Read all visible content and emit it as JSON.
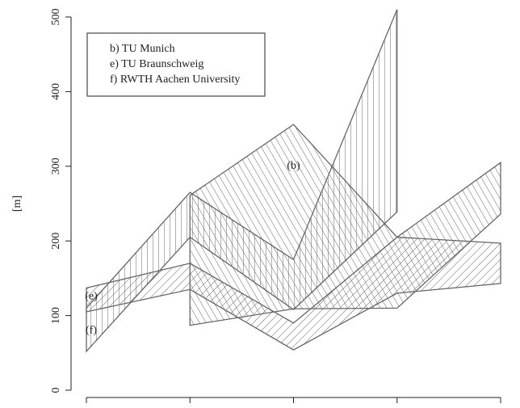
{
  "chart_data": {
    "type": "band",
    "ylabel": "[m]",
    "categories": [
      null,
      null,
      null,
      null,
      null
    ],
    "ylim": [
      0,
      500
    ],
    "yticks": [
      0,
      100,
      200,
      300,
      400,
      500
    ],
    "legend": "top-left",
    "series": [
      {
        "name": "b) TU Munich",
        "color": "#666666",
        "hatch_angle": -30,
        "low": [
          null,
          87,
          109,
          110,
          236
        ],
        "high": [
          null,
          261,
          356,
          205,
          305
        ]
      },
      {
        "name": "e) TU Braunschweig",
        "color": "#666666",
        "hatch_angle": 45,
        "low": [
          105,
          135,
          54,
          130,
          143
        ],
        "high": [
          137,
          170,
          90,
          205,
          197
        ]
      },
      {
        "name": "f) RWTH Aachen University",
        "color": "#666666",
        "hatch_angle": 0,
        "low": [
          52,
          205,
          108,
          239,
          null
        ],
        "high": [
          110,
          265,
          175,
          510,
          null
        ]
      }
    ],
    "annotations": [
      {
        "text": "(b)",
        "x": 2,
        "y": 300
      },
      {
        "text": "(e)",
        "x": 0,
        "y": 125
      },
      {
        "text": "(f)",
        "x": 0,
        "y": 80
      }
    ]
  }
}
